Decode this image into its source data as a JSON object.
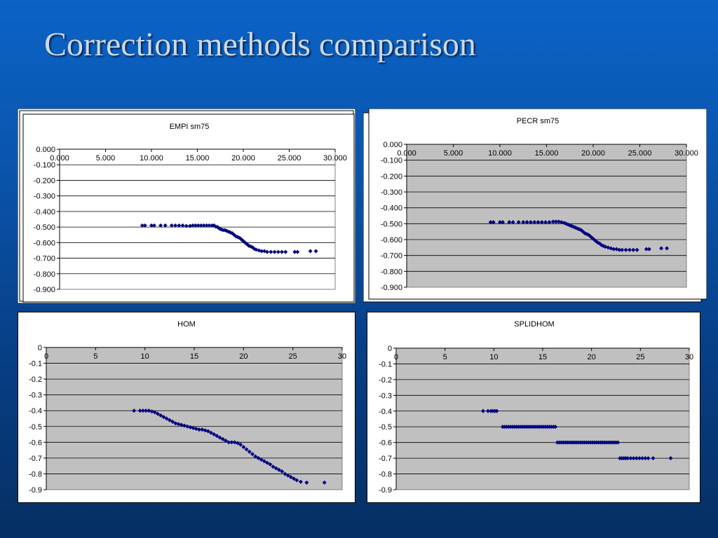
{
  "slide": {
    "title": "Correction methods comparison"
  },
  "chart_data": [
    {
      "type": "scatter",
      "title": "EMPI sm75",
      "xlabel": "",
      "ylabel": "",
      "xlim": [
        0,
        30
      ],
      "ylim": [
        -0.9,
        0
      ],
      "xticks": [
        "0.000",
        "5.000",
        "10.000",
        "15.000",
        "20.000",
        "25.000",
        "30.000"
      ],
      "yticks": [
        "0.000",
        "-0.100",
        "-0.200",
        "-0.300",
        "-0.400",
        "-0.500",
        "-0.600",
        "-0.700",
        "-0.800",
        "-0.900"
      ],
      "grid": true,
      "plot_bg": "#ffffff",
      "marker_color": "#000080",
      "x": [
        9.0,
        9.3,
        10.0,
        10.3,
        11.0,
        11.5,
        12.2,
        12.6,
        13.0,
        13.4,
        13.8,
        14.2,
        14.5,
        14.8,
        15.1,
        15.4,
        15.7,
        16.0,
        16.3,
        16.6,
        16.8,
        17.0,
        17.2,
        17.4,
        17.6,
        17.8,
        18.0,
        18.2,
        18.4,
        18.6,
        18.8,
        19.0,
        19.2,
        19.4,
        19.6,
        19.8,
        20.0,
        20.2,
        20.4,
        20.6,
        20.8,
        21.0,
        21.2,
        21.4,
        21.7,
        22.0,
        22.3,
        22.6,
        23.0,
        23.4,
        23.8,
        24.2,
        24.6,
        25.6,
        25.9,
        27.3,
        27.9
      ],
      "y": [
        -0.49,
        -0.49,
        -0.49,
        -0.49,
        -0.49,
        -0.49,
        -0.49,
        -0.49,
        -0.49,
        -0.49,
        -0.493,
        -0.493,
        -0.49,
        -0.49,
        -0.49,
        -0.49,
        -0.49,
        -0.49,
        -0.49,
        -0.49,
        -0.49,
        -0.497,
        -0.5,
        -0.51,
        -0.515,
        -0.52,
        -0.52,
        -0.525,
        -0.53,
        -0.535,
        -0.54,
        -0.55,
        -0.56,
        -0.565,
        -0.57,
        -0.58,
        -0.59,
        -0.6,
        -0.61,
        -0.62,
        -0.625,
        -0.63,
        -0.64,
        -0.645,
        -0.65,
        -0.655,
        -0.655,
        -0.66,
        -0.66,
        -0.66,
        -0.66,
        -0.66,
        -0.66,
        -0.66,
        -0.66,
        -0.655,
        -0.655
      ]
    },
    {
      "type": "scatter",
      "title": "PECR sm75",
      "xlabel": "",
      "ylabel": "",
      "xlim": [
        0,
        30
      ],
      "ylim": [
        -0.9,
        0
      ],
      "xticks": [
        "0.000",
        "5.000",
        "10.000",
        "15.000",
        "20.000",
        "25.000",
        "30.000"
      ],
      "yticks": [
        "0.000",
        "-0.100",
        "-0.200",
        "-0.300",
        "-0.400",
        "-0.500",
        "-0.600",
        "-0.700",
        "-0.800",
        "-0.900"
      ],
      "grid": true,
      "plot_bg": "#c0c0c0",
      "marker_color": "#000080",
      "x": [
        9.0,
        9.3,
        10.0,
        10.3,
        11.0,
        11.4,
        12.0,
        12.5,
        12.9,
        13.3,
        13.7,
        14.1,
        14.5,
        14.9,
        15.3,
        15.7,
        16.0,
        16.3,
        16.6,
        16.9,
        17.1,
        17.3,
        17.5,
        17.7,
        17.9,
        18.1,
        18.3,
        18.5,
        18.7,
        18.9,
        19.1,
        19.3,
        19.5,
        19.7,
        19.9,
        20.1,
        20.3,
        20.5,
        20.7,
        20.9,
        21.1,
        21.3,
        21.6,
        21.9,
        22.2,
        22.5,
        22.8,
        23.1,
        23.5,
        23.9,
        24.3,
        24.7,
        25.7,
        26.0,
        27.3,
        27.9
      ],
      "y": [
        -0.49,
        -0.49,
        -0.49,
        -0.49,
        -0.49,
        -0.49,
        -0.49,
        -0.49,
        -0.49,
        -0.49,
        -0.49,
        -0.49,
        -0.49,
        -0.49,
        -0.49,
        -0.487,
        -0.487,
        -0.487,
        -0.49,
        -0.495,
        -0.5,
        -0.505,
        -0.51,
        -0.515,
        -0.52,
        -0.525,
        -0.53,
        -0.535,
        -0.54,
        -0.55,
        -0.56,
        -0.565,
        -0.57,
        -0.58,
        -0.59,
        -0.6,
        -0.61,
        -0.62,
        -0.625,
        -0.635,
        -0.64,
        -0.645,
        -0.65,
        -0.655,
        -0.66,
        -0.66,
        -0.665,
        -0.665,
        -0.665,
        -0.665,
        -0.665,
        -0.665,
        -0.66,
        -0.66,
        -0.655,
        -0.655
      ]
    },
    {
      "type": "scatter",
      "title": "HOM",
      "xlabel": "",
      "ylabel": "",
      "xlim": [
        0,
        30
      ],
      "ylim": [
        -0.9,
        0
      ],
      "xticks": [
        "0",
        "5",
        "10",
        "15",
        "20",
        "25",
        "30"
      ],
      "yticks": [
        "0",
        "-0.1",
        "-0.2",
        "-0.3",
        "-0.4",
        "-0.5",
        "-0.6",
        "-0.7",
        "-0.8",
        "-0.9"
      ],
      "grid": true,
      "plot_bg": "#c0c0c0",
      "marker_color": "#000080",
      "x": [
        8.9,
        9.5,
        9.8,
        10.1,
        10.4,
        10.7,
        11.0,
        11.3,
        11.6,
        11.9,
        12.2,
        12.5,
        12.8,
        13.1,
        13.4,
        13.7,
        14.0,
        14.3,
        14.6,
        14.9,
        15.2,
        15.5,
        15.8,
        16.1,
        16.4,
        16.7,
        17.0,
        17.3,
        17.6,
        17.9,
        18.2,
        18.5,
        18.8,
        19.1,
        19.4,
        19.7,
        20.0,
        20.3,
        20.6,
        20.9,
        21.2,
        21.5,
        21.8,
        22.1,
        22.4,
        22.7,
        23.0,
        23.3,
        23.6,
        23.9,
        24.2,
        24.5,
        24.8,
        25.1,
        25.4,
        25.8,
        26.4,
        28.2
      ],
      "y": [
        -0.4,
        -0.4,
        -0.4,
        -0.4,
        -0.4,
        -0.405,
        -0.41,
        -0.42,
        -0.43,
        -0.44,
        -0.45,
        -0.46,
        -0.47,
        -0.48,
        -0.485,
        -0.49,
        -0.495,
        -0.5,
        -0.505,
        -0.51,
        -0.515,
        -0.52,
        -0.52,
        -0.525,
        -0.53,
        -0.54,
        -0.55,
        -0.56,
        -0.57,
        -0.58,
        -0.59,
        -0.6,
        -0.6,
        -0.6,
        -0.605,
        -0.615,
        -0.63,
        -0.645,
        -0.66,
        -0.675,
        -0.69,
        -0.7,
        -0.71,
        -0.72,
        -0.73,
        -0.74,
        -0.755,
        -0.765,
        -0.775,
        -0.785,
        -0.8,
        -0.81,
        -0.82,
        -0.83,
        -0.84,
        -0.85,
        -0.855,
        -0.855
      ]
    },
    {
      "type": "scatter",
      "title": "SPLIDHOM",
      "xlabel": "",
      "ylabel": "",
      "xlim": [
        0,
        30
      ],
      "ylim": [
        -0.9,
        0
      ],
      "xticks": [
        "0",
        "5",
        "10",
        "15",
        "20",
        "25",
        "30"
      ],
      "yticks": [
        "0",
        "-0.1",
        "-0.2",
        "-0.3",
        "-0.4",
        "-0.5",
        "-0.6",
        "-0.7",
        "-0.8",
        "-0.9"
      ],
      "grid": true,
      "plot_bg": "#c0c0c0",
      "marker_color": "#000080",
      "x": [
        8.9,
        9.4,
        9.7,
        9.9,
        10.1,
        10.3,
        10.9,
        11.1,
        11.3,
        11.5,
        11.7,
        11.9,
        12.1,
        12.3,
        12.5,
        12.7,
        12.9,
        13.1,
        13.3,
        13.5,
        13.7,
        13.9,
        14.1,
        14.3,
        14.5,
        14.7,
        14.9,
        15.1,
        15.3,
        15.5,
        15.7,
        15.9,
        16.1,
        16.3,
        16.5,
        16.7,
        16.9,
        17.1,
        17.3,
        17.5,
        17.7,
        17.9,
        18.1,
        18.3,
        18.5,
        18.7,
        18.9,
        19.1,
        19.3,
        19.5,
        19.7,
        19.9,
        20.1,
        20.3,
        20.5,
        20.7,
        20.9,
        21.1,
        21.3,
        21.5,
        21.7,
        21.9,
        22.1,
        22.3,
        22.5,
        22.7,
        22.9,
        23.1,
        23.3,
        23.5,
        23.7,
        24.0,
        24.3,
        24.6,
        24.9,
        25.2,
        25.5,
        25.8,
        26.3,
        28.1
      ],
      "y": [
        -0.4,
        -0.4,
        -0.4,
        -0.4,
        -0.4,
        -0.4,
        -0.5,
        -0.5,
        -0.5,
        -0.5,
        -0.5,
        -0.5,
        -0.5,
        -0.5,
        -0.5,
        -0.5,
        -0.5,
        -0.5,
        -0.5,
        -0.5,
        -0.5,
        -0.5,
        -0.5,
        -0.5,
        -0.5,
        -0.5,
        -0.5,
        -0.5,
        -0.5,
        -0.5,
        -0.5,
        -0.5,
        -0.5,
        -0.5,
        -0.6,
        -0.6,
        -0.6,
        -0.6,
        -0.6,
        -0.6,
        -0.6,
        -0.6,
        -0.6,
        -0.6,
        -0.6,
        -0.6,
        -0.6,
        -0.6,
        -0.6,
        -0.6,
        -0.6,
        -0.6,
        -0.6,
        -0.6,
        -0.6,
        -0.6,
        -0.6,
        -0.6,
        -0.6,
        -0.6,
        -0.6,
        -0.6,
        -0.6,
        -0.6,
        -0.6,
        -0.6,
        -0.7,
        -0.7,
        -0.7,
        -0.7,
        -0.7,
        -0.7,
        -0.7,
        -0.7,
        -0.7,
        -0.7,
        -0.7,
        -0.7,
        -0.7,
        -0.7
      ]
    }
  ]
}
